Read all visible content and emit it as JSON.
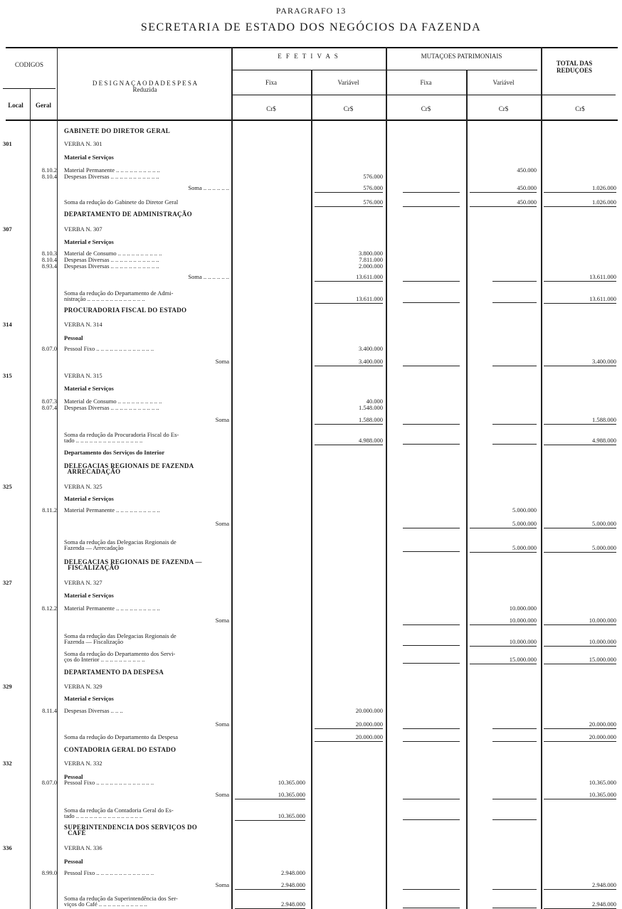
{
  "page": {
    "title": "PARAGRAFO 13",
    "subtitle": "SECRETARIA DE ESTADO DOS NEGÓCIOS DA FAZENDA"
  },
  "header": {
    "codigos": "CODIGOS",
    "local": "Local",
    "geral": "Geral",
    "designacao": "D E S I G N A Ç A O   D A   D E S P E S A",
    "reduzida": "Reduzida",
    "efetivas": "E F E  T I V A S",
    "mutacoes": "MUTAÇOES  PATRIMONIAIS",
    "total": "TOTAL DAS REDUÇOES",
    "fixa": "Fixa",
    "variavel": "Variável",
    "currency": "Cr$"
  },
  "rows": [
    {
      "kind": "caps",
      "text": "GABINETE DO DIRETOR GERAL"
    },
    {
      "kind": "verba",
      "local": "301",
      "text": "VERBA N. 301"
    },
    {
      "kind": "sub",
      "text": "Material e Serviços"
    },
    {
      "kind": "item",
      "geral": "8.10.2",
      "text": "Material Permanente .. .. .. .. .. .. .. .. .. ..",
      "mv": "450.000"
    },
    {
      "kind": "item",
      "geral": "8.10.4",
      "text": "Despesas Diversas .. .. .. .. .. .. .. .. .. .. ..",
      "ev": "576.000"
    },
    {
      "kind": "soma",
      "text": "Soma .. .. .. .. .. ..",
      "ev": "576.000",
      "mv": "450.000",
      "tot": "1.026.000"
    },
    {
      "kind": "total",
      "text": "Soma da redução do Gabinete do Diretor Geral",
      "ev": "576.000",
      "mv": "450.000",
      "tot": "1.026.000"
    },
    {
      "kind": "caps",
      "text": "DEPARTAMENTO DE ADMINISTRAÇÃO"
    },
    {
      "kind": "verba",
      "local": "307",
      "text": "VERBA N. 307"
    },
    {
      "kind": "sub",
      "text": "Material e Serviços"
    },
    {
      "kind": "item",
      "geral": "8.10.3",
      "text": "Material de Consumo .. .. .. .. .. .. .. .. .. ..",
      "ev": "3.800.000"
    },
    {
      "kind": "item",
      "geral": "8.10.4",
      "text": "Despesas Diversas .. .. .. .. .. .. .. .. .. .. ..",
      "ev": "7.811.000"
    },
    {
      "kind": "item",
      "geral": "8.93.4",
      "text": "Despesas Diversas .. .. .. .. .. .. .. .. .. .. ..",
      "ev": "2.000.000"
    },
    {
      "kind": "soma",
      "text": "Soma .. .. .. .. .. ..",
      "ev": "13.611.000",
      "tot": "13.611.000"
    },
    {
      "kind": "total2",
      "text": "Soma da redução do Departamento de Admi-\nnistração .. .. .. .. .. .. .. .. .. .. .. .. ..",
      "ev": "13.611.000",
      "tot": "13.611.000"
    },
    {
      "kind": "caps",
      "text": "PROCURADORIA FISCAL DO ESTADO"
    },
    {
      "kind": "verba",
      "local": "314",
      "text": "VERBA N. 314"
    },
    {
      "kind": "sub",
      "text": "Pessoal"
    },
    {
      "kind": "item",
      "geral": "8.07.0",
      "text": "Pessoal Fixo .. .. .. .. .. .. .. .. .. .. .. .. ..",
      "ev": "3.400.000"
    },
    {
      "kind": "soma",
      "text": "Soma",
      "ev": "3.400.000",
      "tot": "3.400.000"
    },
    {
      "kind": "verba",
      "local": "315",
      "text": "VERBA N. 315"
    },
    {
      "kind": "sub",
      "text": "Material e Serviços"
    },
    {
      "kind": "item",
      "geral": "8.07.3",
      "text": "Material de Consumo .. .. .. .. .. .. .. .. .. ..",
      "ev": "40.000"
    },
    {
      "kind": "item",
      "geral": "8.07.4",
      "text": "Despesas Diversas .. .. .. .. .. .. .. .. .. .. ..",
      "ev": "1.548.000"
    },
    {
      "kind": "soma",
      "text": "Soma",
      "ev": "1.588.000",
      "tot": "1.588.000"
    },
    {
      "kind": "total2",
      "text": "Soma da redução da Procuradoria Fiscal do Es-\ntado .. .. .. .. .. .. .. .. .. .. .. .. .. .. ..",
      "ev": "4.988.000",
      "tot": "4.988.000"
    },
    {
      "kind": "sub",
      "text": "Departamento dos Serviços do Interior"
    },
    {
      "kind": "caps2",
      "text": "DELEGACIAS REGIONAIS DE FAZENDA\n  ARRECADAÇÃO"
    },
    {
      "kind": "verba",
      "local": "325",
      "text": "VERBA N. 325"
    },
    {
      "kind": "sub",
      "text": "Material e Serviços"
    },
    {
      "kind": "item",
      "geral": "8.11.2",
      "text": "Material Permanente .. .. .. .. .. .. .. .. .. ..",
      "mv": "5.000.000"
    },
    {
      "kind": "soma",
      "text": "Soma",
      "mv": "5.000.000",
      "tot": "5.000.000"
    },
    {
      "kind": "total2",
      "text": "Soma da redução das Delegacias Regionais de\nFazenda — Arrecadação",
      "mv": "5.000.000",
      "tot": "5.000.000"
    },
    {
      "kind": "caps2",
      "text": "DELEGACIAS REGIONAIS DE FAZENDA —\n  FISCALIZAÇÃO"
    },
    {
      "kind": "verba",
      "local": "327",
      "text": "VERBA N. 327"
    },
    {
      "kind": "sub",
      "text": "Material e Serviços"
    },
    {
      "kind": "item",
      "geral": "8.12.2",
      "text": "Material Permanente .. .. .. .. .. .. .. .. .. ..",
      "mv": "10.000.000"
    },
    {
      "kind": "soma",
      "text": "Soma",
      "mv": "10.000.000",
      "tot": "10.000.000"
    },
    {
      "kind": "total2",
      "text": "Soma da redução das Delegacias Regionais de\nFazenda — Fiscalização",
      "mv": "10.000.000",
      "tot": "10.000.000"
    },
    {
      "kind": "total2",
      "text": "Soma da redução do Departamento dos Servi-\nços do Interior .. .. .. .. .. .. .. .. .. ..",
      "mv": "15.000.000",
      "tot": "15.000.000"
    },
    {
      "kind": "caps",
      "text": "DEPARTAMENTO DA DESPESA"
    },
    {
      "kind": "verba",
      "local": "329",
      "text": "VERBA N. 329"
    },
    {
      "kind": "sub",
      "text": "Material e Serviços"
    },
    {
      "kind": "item",
      "geral": "8.11.4",
      "text": "Despesas Diversas .. .. ..",
      "ev": "20.000.000"
    },
    {
      "kind": "soma",
      "text": "Soma",
      "ev": "20.000.000",
      "tot": "20.000.000"
    },
    {
      "kind": "total",
      "text": "Soma da redução do Departamento da Despesa",
      "ev": "20.000.000",
      "tot": "20.000.000"
    },
    {
      "kind": "caps",
      "text": "CONTADORIA GERAL DO ESTADO"
    },
    {
      "kind": "verba",
      "local": "332",
      "text": "VERBA N. 332"
    },
    {
      "kind": "sub",
      "text": "Pessoal"
    },
    {
      "kind": "item",
      "geral": "8.07.0",
      "text": "Pessoal Fixo .. .. .. .. .. .. .. .. .. .. .. .. ..",
      "ef": "10.365.000",
      "tot": "10.365.000"
    },
    {
      "kind": "soma",
      "text": "Soma",
      "ef": "10.365.000",
      "tot": "10.365.000"
    },
    {
      "kind": "total2",
      "text": "Soma da redução da Contadoria Geral do Es-\ntado .. .. .. .. .. .. .. .. .. .. .. .. .. .. ..",
      "ef": "10.365.000"
    },
    {
      "kind": "caps2",
      "text": "SUPERINTENDENCIA DOS SERVIÇOS DO\n  CAFÉ"
    },
    {
      "kind": "verba",
      "local": "336",
      "text": "VERBA N. 336"
    },
    {
      "kind": "sub",
      "text": "Pessoal"
    },
    {
      "kind": "item",
      "geral": "8.99.0",
      "text": "Pessoal Fixo .. .. .. .. .. .. .. .. .. .. .. .. ..",
      "ef": "2.948.000"
    },
    {
      "kind": "soma",
      "text": "Soma",
      "ef": "2.948.000",
      "tot": "2.948.000"
    },
    {
      "kind": "total2",
      "text": "Soma da redução da Superintendência dos Ser-\nviços do Café .. .. .. .. .. .. .. .. .. .. ..",
      "ef": "2.948.000",
      "tot": "2.948.000"
    }
  ]
}
